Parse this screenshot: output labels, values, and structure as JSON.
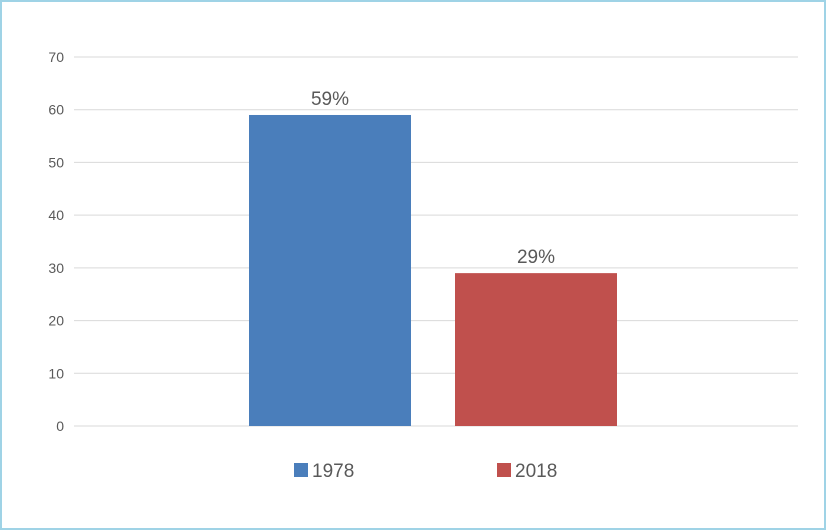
{
  "chart_data": {
    "type": "bar",
    "categories": [
      "1978",
      "2018"
    ],
    "values": [
      59,
      29
    ],
    "data_labels": [
      "59%",
      "29%"
    ],
    "colors": [
      "#4a7ebb",
      "#c0504d"
    ],
    "title": "",
    "xlabel": "",
    "ylabel": "",
    "ylim": [
      0,
      70
    ],
    "yticks": [
      0,
      10,
      20,
      30,
      40,
      50,
      60,
      70
    ],
    "grid": true,
    "legend": {
      "position": "bottom",
      "entries": [
        {
          "name": "1978",
          "color": "#4a7ebb"
        },
        {
          "name": "2018",
          "color": "#c0504d"
        }
      ]
    }
  }
}
